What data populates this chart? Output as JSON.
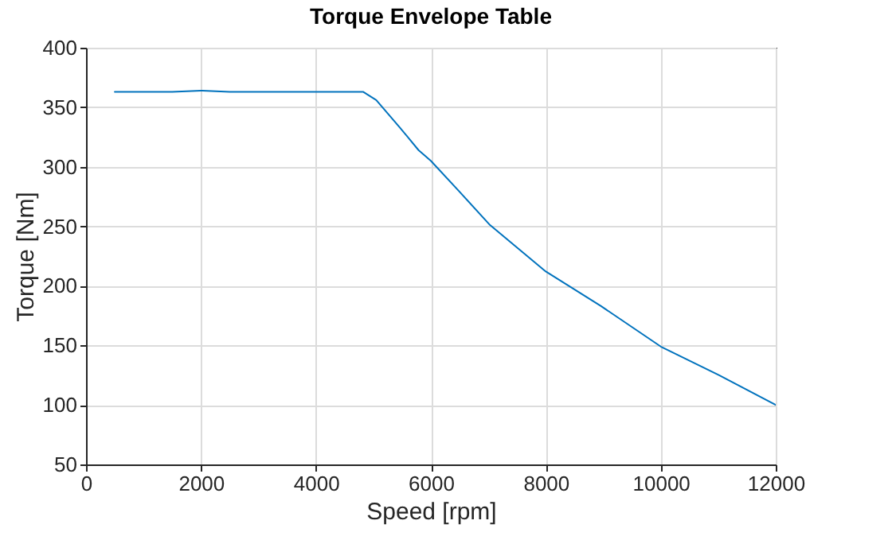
{
  "chart_data": {
    "type": "line",
    "title": "Torque Envelope Table",
    "xlabel": "Speed [rpm]",
    "ylabel": "Torque [Nm]",
    "x": [
      500,
      1500,
      2000,
      2500,
      3500,
      4500,
      4820,
      5050,
      5460,
      5785,
      6000,
      6480,
      7030,
      8000,
      8960,
      10000,
      11010,
      12000
    ],
    "series": [
      {
        "color": "#0072bd",
        "values": [
          363,
          363,
          364,
          363,
          363,
          363,
          363,
          356,
          333,
          314,
          305,
          280,
          251,
          212,
          183,
          149,
          125,
          100
        ]
      }
    ],
    "xlim": [
      0,
      12000
    ],
    "xticks": [
      0,
      2000,
      4000,
      6000,
      8000,
      10000,
      12000
    ],
    "ylim": [
      50,
      400
    ],
    "yticks": [
      50,
      100,
      150,
      200,
      250,
      300,
      350,
      400
    ],
    "grid": true,
    "line_style": "solid",
    "marker": "none"
  }
}
